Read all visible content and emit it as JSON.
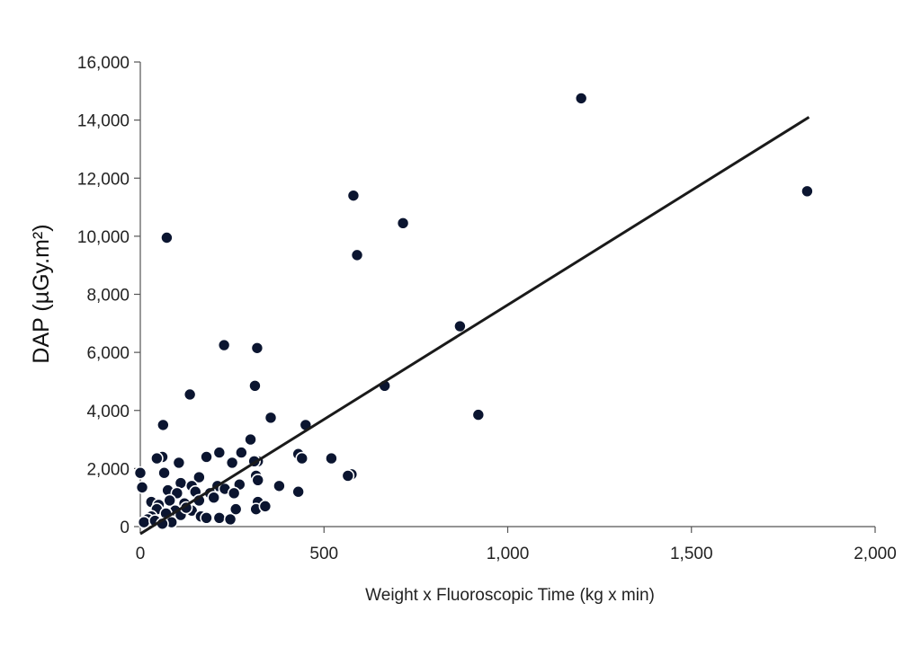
{
  "chart_data": {
    "type": "scatter",
    "title": "",
    "xlabel": "Weight x Fluoroscopic Time (kg x min)",
    "ylabel": "DAP (µGy.m²)",
    "xlim": [
      0,
      2000
    ],
    "ylim": [
      0,
      16000
    ],
    "x_ticks": [
      0,
      500,
      1000,
      1500,
      2000
    ],
    "x_tick_labels": [
      "0",
      "500",
      "1,000",
      "1,500",
      "2,000"
    ],
    "y_ticks": [
      0,
      2000,
      4000,
      6000,
      8000,
      10000,
      12000,
      14000,
      16000
    ],
    "y_tick_labels": [
      "0",
      "2,000",
      "4,000",
      "6,000",
      "8,000",
      "10,000",
      "12,000",
      "14,000",
      "16,000"
    ],
    "grid": false,
    "legend": "none",
    "point_color": "#0b1530",
    "point_edge_color": "#ffffff",
    "trendline": {
      "x": [
        0,
        1820
      ],
      "y": [
        -250,
        14100
      ],
      "color": "#1a1a1a"
    },
    "points": [
      [
        1200,
        14750
      ],
      [
        1815,
        11550
      ],
      [
        580,
        11400
      ],
      [
        715,
        10450
      ],
      [
        72,
        9950
      ],
      [
        590,
        9350
      ],
      [
        870,
        6900
      ],
      [
        228,
        6250
      ],
      [
        318,
        6150
      ],
      [
        920,
        3850
      ],
      [
        312,
        4850
      ],
      [
        665,
        4850
      ],
      [
        135,
        4550
      ],
      [
        355,
        3750
      ],
      [
        62,
        3500
      ],
      [
        450,
        3500
      ],
      [
        300,
        3000
      ],
      [
        275,
        2550
      ],
      [
        215,
        2550
      ],
      [
        430,
        2500
      ],
      [
        440,
        2350
      ],
      [
        520,
        2350
      ],
      [
        60,
        2400
      ],
      [
        45,
        2350
      ],
      [
        320,
        2250
      ],
      [
        310,
        2250
      ],
      [
        105,
        2200
      ],
      [
        250,
        2200
      ],
      [
        180,
        2400
      ],
      [
        0,
        1850
      ],
      [
        65,
        1850
      ],
      [
        575,
        1800
      ],
      [
        565,
        1750
      ],
      [
        315,
        1750
      ],
      [
        160,
        1700
      ],
      [
        5,
        1350
      ],
      [
        110,
        1500
      ],
      [
        140,
        1400
      ],
      [
        210,
        1400
      ],
      [
        270,
        1450
      ],
      [
        378,
        1400
      ],
      [
        430,
        1200
      ],
      [
        320,
        1600
      ],
      [
        75,
        1250
      ],
      [
        100,
        1150
      ],
      [
        150,
        1200
      ],
      [
        230,
        1300
      ],
      [
        190,
        1150
      ],
      [
        255,
        1150
      ],
      [
        30,
        850
      ],
      [
        50,
        750
      ],
      [
        80,
        900
      ],
      [
        120,
        800
      ],
      [
        160,
        900
      ],
      [
        200,
        1000
      ],
      [
        320,
        850
      ],
      [
        45,
        600
      ],
      [
        95,
        550
      ],
      [
        140,
        550
      ],
      [
        70,
        450
      ],
      [
        30,
        350
      ],
      [
        110,
        400
      ],
      [
        165,
        350
      ],
      [
        20,
        250
      ],
      [
        85,
        150
      ],
      [
        215,
        300
      ],
      [
        245,
        250
      ],
      [
        260,
        600
      ],
      [
        315,
        600
      ],
      [
        340,
        700
      ],
      [
        10,
        150
      ],
      [
        40,
        200
      ],
      [
        60,
        100
      ],
      [
        125,
        650
      ],
      [
        180,
        300
      ]
    ]
  }
}
